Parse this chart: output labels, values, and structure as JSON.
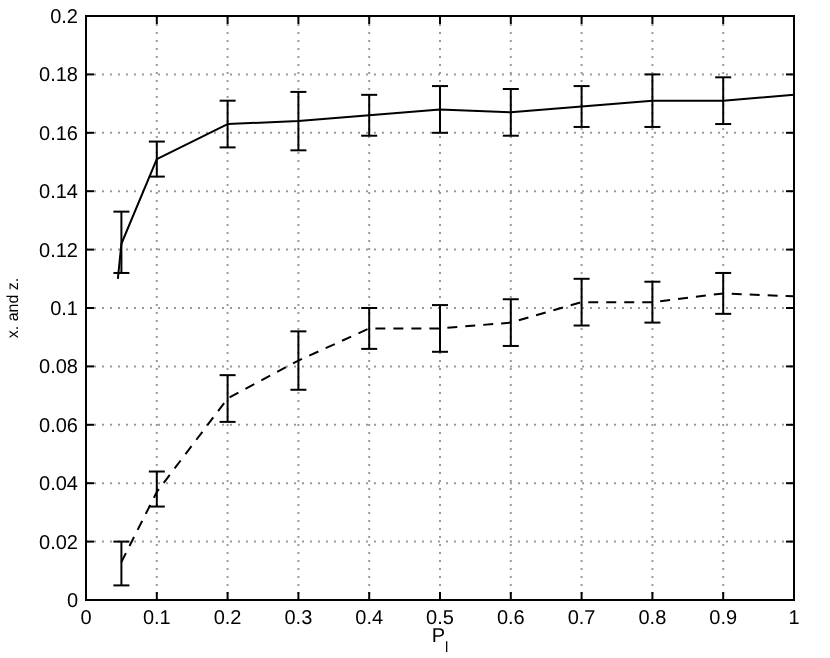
{
  "chart_data": {
    "type": "line",
    "xlabel": "P$_{l}$",
    "ylabel": "x. and z.",
    "xlim": [
      0,
      1
    ],
    "ylim": [
      0,
      0.2
    ],
    "xticks": [
      0,
      0.1,
      0.2,
      0.3,
      0.4,
      0.5,
      0.6,
      0.7,
      0.8,
      0.9,
      1
    ],
    "yticks": [
      0,
      0.02,
      0.04,
      0.06,
      0.08,
      0.1,
      0.12,
      0.14,
      0.16,
      0.18,
      0.2
    ],
    "grid": true,
    "marker": "none",
    "series": [
      {
        "color": "#000000",
        "line_style": "solid",
        "x": [
          0.045,
          0.05,
          0.1,
          0.2,
          0.3,
          0.4,
          0.5,
          0.6,
          0.7,
          0.8,
          0.9,
          1
        ],
        "values": [
          0.11,
          0.122,
          0.151,
          0.163,
          0.164,
          0.166,
          0.168,
          0.167,
          0.169,
          0.171,
          0.171,
          0.173
        ],
        "errors": [
          null,
          [
            0.112,
            0.133
          ],
          [
            0.145,
            0.157
          ],
          [
            0.155,
            0.171
          ],
          [
            0.154,
            0.174
          ],
          [
            0.159,
            0.173
          ],
          [
            0.16,
            0.176
          ],
          [
            0.159,
            0.175
          ],
          [
            0.162,
            0.176
          ],
          [
            0.162,
            0.18
          ],
          [
            0.163,
            0.179
          ],
          null
        ]
      },
      {
        "color": "#000000",
        "line_style": "dashed",
        "x": [
          0.05,
          0.1,
          0.2,
          0.3,
          0.4,
          0.5,
          0.6,
          0.7,
          0.8,
          0.9,
          1
        ],
        "values": [
          0.013,
          0.037,
          0.069,
          0.082,
          0.093,
          0.093,
          0.095,
          0.102,
          0.102,
          0.105,
          0.104
        ],
        "errors": [
          [
            0.005,
            0.02
          ],
          [
            0.032,
            0.044
          ],
          [
            0.061,
            0.077
          ],
          [
            0.072,
            0.092
          ],
          [
            0.086,
            0.1
          ],
          [
            0.085,
            0.101
          ],
          [
            0.087,
            0.103
          ],
          [
            0.094,
            0.11
          ],
          [
            0.095,
            0.109
          ],
          [
            0.098,
            0.112
          ],
          null
        ]
      }
    ]
  }
}
